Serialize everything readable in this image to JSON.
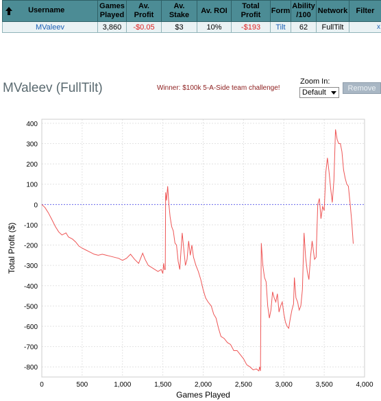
{
  "table": {
    "headers": {
      "username": "Username",
      "games_played": [
        "Games",
        "Played"
      ],
      "av_profit": [
        "Av.",
        "Profit"
      ],
      "av_stake": [
        "Av.",
        "Stake"
      ],
      "av_roi": "Av. ROI",
      "total_profit": [
        "Total",
        "Profit"
      ],
      "form": "Form",
      "ability": [
        "Ability",
        "/100"
      ],
      "network": "Network",
      "filter": "Filter"
    },
    "row": {
      "username": "MValeev",
      "games_played": "3,860",
      "av_profit": "-$0.05",
      "av_stake": "$3",
      "av_roi": "10%",
      "total_profit": "-$193",
      "form": "Tilt",
      "ability": "62",
      "network": "FullTilt",
      "filter": "",
      "remove": "x"
    }
  },
  "header": {
    "title": "MValeev (FullTilt)",
    "winner_text": "Winner: $100k 5-A-Side team challenge!",
    "zoom_label": "Zoom In:",
    "zoom_value": "Default",
    "remove_label": "Remove"
  },
  "colors": {
    "line": "#ee5555",
    "zero_line": "#6a6af0",
    "header_bg": "#4c8c95"
  },
  "chart_data": {
    "type": "line",
    "xlabel": "Games Played",
    "ylabel": "Total Profit ($)",
    "xlim": [
      0,
      4000
    ],
    "ylim": [
      -850,
      420
    ],
    "grid": true,
    "x_ticks": [
      0,
      500,
      1000,
      1500,
      2000,
      2500,
      3000,
      3500,
      4000
    ],
    "x_tick_labels": [
      "0",
      "500",
      "1,000",
      "1,500",
      "2,000",
      "2,500",
      "3,000",
      "3,500",
      "4,000"
    ],
    "y_ticks": [
      400,
      300,
      200,
      100,
      0,
      -100,
      -200,
      -300,
      -400,
      -500,
      -600,
      -700,
      -800
    ],
    "reference_line_y": 0,
    "series": [
      {
        "points": [
          [
            0,
            0
          ],
          [
            40,
            -15
          ],
          [
            80,
            -40
          ],
          [
            120,
            -70
          ],
          [
            170,
            -110
          ],
          [
            210,
            -135
          ],
          [
            250,
            -150
          ],
          [
            300,
            -140
          ],
          [
            330,
            -160
          ],
          [
            380,
            -170
          ],
          [
            420,
            -185
          ],
          [
            460,
            -205
          ],
          [
            500,
            -215
          ],
          [
            550,
            -225
          ],
          [
            600,
            -235
          ],
          [
            650,
            -245
          ],
          [
            700,
            -250
          ],
          [
            750,
            -245
          ],
          [
            800,
            -250
          ],
          [
            850,
            -255
          ],
          [
            900,
            -260
          ],
          [
            950,
            -265
          ],
          [
            1000,
            -275
          ],
          [
            1050,
            -265
          ],
          [
            1100,
            -245
          ],
          [
            1150,
            -270
          ],
          [
            1200,
            -290
          ],
          [
            1250,
            -240
          ],
          [
            1280,
            -270
          ],
          [
            1320,
            -300
          ],
          [
            1360,
            -310
          ],
          [
            1400,
            -320
          ],
          [
            1440,
            -330
          ],
          [
            1480,
            -320
          ],
          [
            1500,
            -340
          ],
          [
            1510,
            -290
          ],
          [
            1520,
            -320
          ],
          [
            1530,
            -320
          ],
          [
            1535,
            60
          ],
          [
            1545,
            20
          ],
          [
            1560,
            90
          ],
          [
            1575,
            0
          ],
          [
            1590,
            -60
          ],
          [
            1610,
            -110
          ],
          [
            1630,
            -130
          ],
          [
            1650,
            -190
          ],
          [
            1670,
            -200
          ],
          [
            1690,
            -280
          ],
          [
            1710,
            -320
          ],
          [
            1720,
            -260
          ],
          [
            1740,
            -140
          ],
          [
            1760,
            -220
          ],
          [
            1780,
            -300
          ],
          [
            1800,
            -270
          ],
          [
            1820,
            -180
          ],
          [
            1840,
            -250
          ],
          [
            1860,
            -200
          ],
          [
            1880,
            -260
          ],
          [
            1910,
            -300
          ],
          [
            1940,
            -330
          ],
          [
            1970,
            -370
          ],
          [
            2000,
            -420
          ],
          [
            2030,
            -460
          ],
          [
            2060,
            -480
          ],
          [
            2100,
            -500
          ],
          [
            2130,
            -540
          ],
          [
            2160,
            -560
          ],
          [
            2190,
            -610
          ],
          [
            2220,
            -650
          ],
          [
            2260,
            -660
          ],
          [
            2300,
            -680
          ],
          [
            2340,
            -690
          ],
          [
            2380,
            -720
          ],
          [
            2420,
            -720
          ],
          [
            2460,
            -740
          ],
          [
            2500,
            -760
          ],
          [
            2540,
            -790
          ],
          [
            2580,
            -800
          ],
          [
            2620,
            -815
          ],
          [
            2660,
            -810
          ],
          [
            2690,
            -820
          ],
          [
            2700,
            -800
          ],
          [
            2710,
            -820
          ],
          [
            2720,
            -190
          ],
          [
            2740,
            -300
          ],
          [
            2760,
            -360
          ],
          [
            2780,
            -380
          ],
          [
            2800,
            -500
          ],
          [
            2820,
            -560
          ],
          [
            2840,
            -520
          ],
          [
            2860,
            -430
          ],
          [
            2880,
            -460
          ],
          [
            2900,
            -480
          ],
          [
            2920,
            -440
          ],
          [
            2940,
            -530
          ],
          [
            2960,
            -500
          ],
          [
            2980,
            -480
          ],
          [
            3000,
            -540
          ],
          [
            3020,
            -580
          ],
          [
            3040,
            -600
          ],
          [
            3060,
            -610
          ],
          [
            3080,
            -560
          ],
          [
            3100,
            -520
          ],
          [
            3120,
            -490
          ],
          [
            3130,
            -360
          ],
          [
            3150,
            -460
          ],
          [
            3170,
            -480
          ],
          [
            3190,
            -520
          ],
          [
            3210,
            -500
          ],
          [
            3230,
            -420
          ],
          [
            3250,
            -140
          ],
          [
            3270,
            -260
          ],
          [
            3290,
            -330
          ],
          [
            3310,
            -370
          ],
          [
            3330,
            -260
          ],
          [
            3350,
            -180
          ],
          [
            3380,
            -270
          ],
          [
            3400,
            -260
          ],
          [
            3420,
            0
          ],
          [
            3440,
            30
          ],
          [
            3460,
            -70
          ],
          [
            3480,
            -10
          ],
          [
            3500,
            -30
          ],
          [
            3520,
            160
          ],
          [
            3540,
            230
          ],
          [
            3560,
            160
          ],
          [
            3580,
            80
          ],
          [
            3600,
            10
          ],
          [
            3620,
            120
          ],
          [
            3640,
            370
          ],
          [
            3660,
            320
          ],
          [
            3680,
            300
          ],
          [
            3700,
            300
          ],
          [
            3720,
            260
          ],
          [
            3740,
            170
          ],
          [
            3760,
            130
          ],
          [
            3780,
            100
          ],
          [
            3800,
            90
          ],
          [
            3820,
            10
          ],
          [
            3840,
            -80
          ],
          [
            3860,
            -193
          ]
        ]
      }
    ]
  }
}
